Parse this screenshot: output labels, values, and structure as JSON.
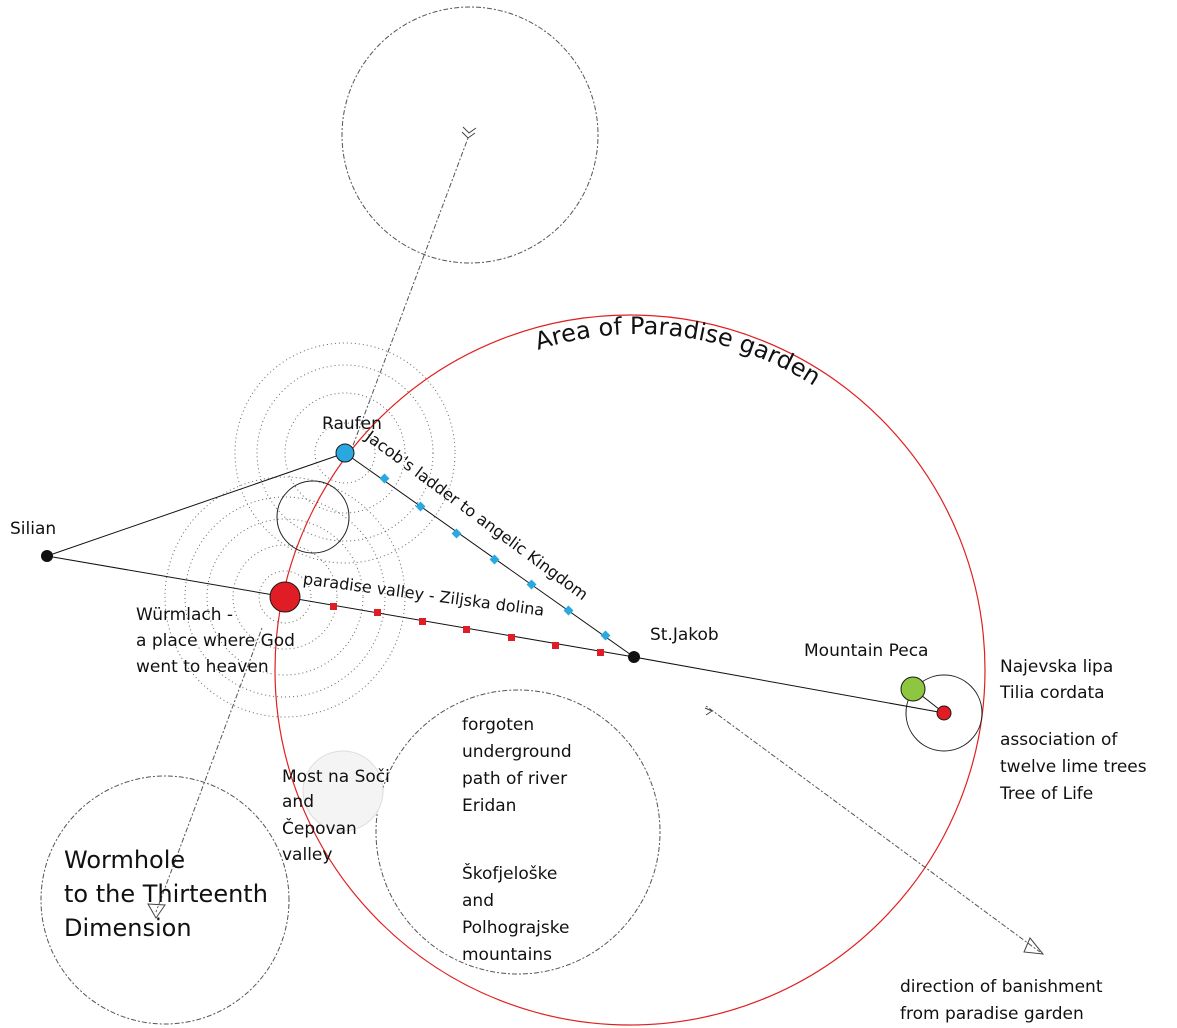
{
  "title": "Area of Paradise garden",
  "places": {
    "silian": "Silian",
    "raufen": "Raufen",
    "st_jakob": "St.Jakob",
    "wurmlach_1": "Würmlach -",
    "wurmlach_2": "a place where God",
    "wurmlach_3": "went to heaven",
    "mountain_peca": "Mountain Peca",
    "most_1": "Most na Soči",
    "most_2": "and",
    "most_3": "Čepovan",
    "most_4": "valley"
  },
  "paths": {
    "jacobs_ladder": "Jacob's ladder to angelic Kingdom",
    "paradise_valley": "paradise valley - Ziljska dolina"
  },
  "notes": {
    "najevska_1": "Najevska lipa",
    "najevska_2": "Tilia cordata",
    "assoc_1": "association of",
    "assoc_2": "twelve lime trees",
    "assoc_3": "Tree of Life",
    "eridan_1": "forgoten",
    "eridan_2": "underground",
    "eridan_3": "path of river",
    "eridan_4": "Eridan",
    "mountains_1": "Škofjeloške",
    "mountains_2": "and",
    "mountains_3": "Polhograjske",
    "mountains_4": "mountains",
    "wormhole_1": "Wormhole",
    "wormhole_2": "to the Thirteenth",
    "wormhole_3": "Dimension",
    "banish_1": "direction of banishment",
    "banish_2": "from paradise garden"
  },
  "colors": {
    "paradise_circle": "#e02020",
    "raufen_node": "#2aa7e0",
    "wurmlach_node": "#e01c24",
    "peca_green": "#8dc63f",
    "peca_red": "#e01c24",
    "ladder_marker": "#29a9e0",
    "valley_marker": "#e01c24",
    "wormhole_fill": "#fdfdf0",
    "sky_fill": "#f3f7fa"
  }
}
